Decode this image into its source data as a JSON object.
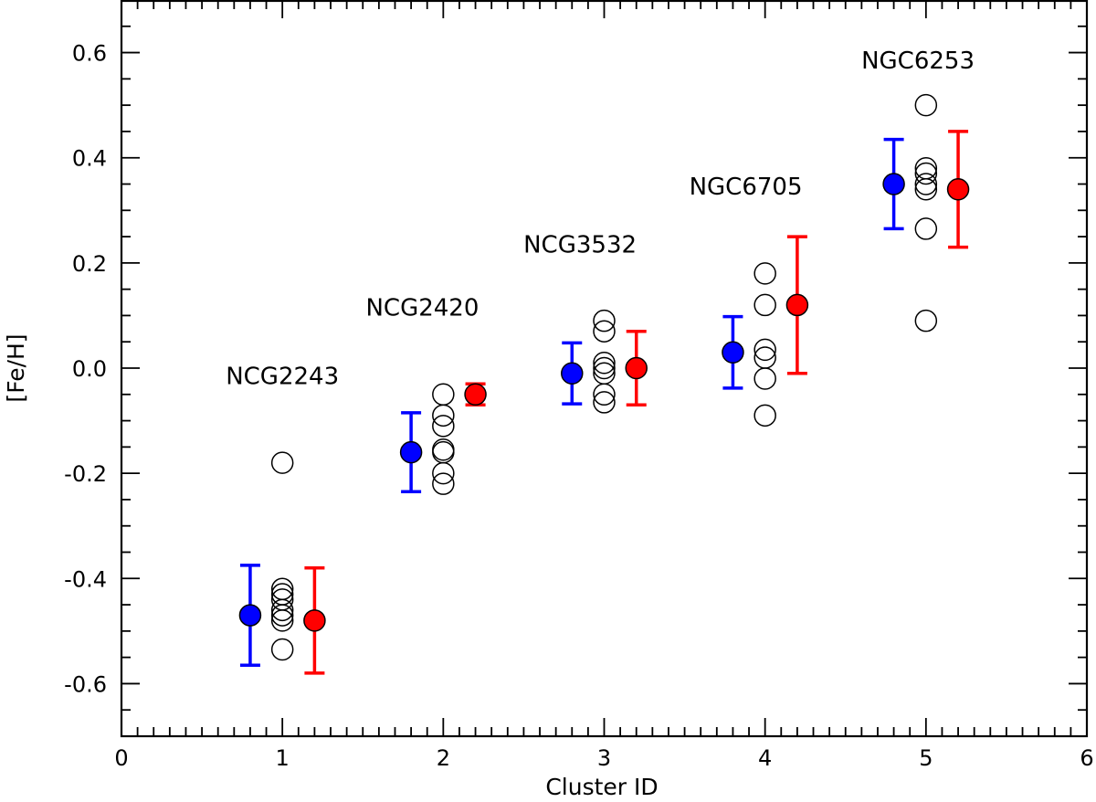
{
  "chart_data": {
    "type": "scatter",
    "title": "",
    "xlabel": "Cluster ID",
    "ylabel": "[Fe/H]",
    "xlim": [
      0,
      6
    ],
    "ylim": [
      -0.7,
      0.7
    ],
    "x_ticks": [
      0,
      1,
      2,
      3,
      4,
      5,
      6
    ],
    "x_tick_labels": [
      "0",
      "1",
      "2",
      "3",
      "4",
      "5",
      "6"
    ],
    "y_ticks": [
      -0.6,
      -0.4,
      -0.2,
      0.0,
      0.2,
      0.4,
      0.6
    ],
    "y_tick_labels": [
      "-0.6",
      "-0.4",
      "-0.2",
      "0.0",
      "0.2",
      "0.4",
      "0.6"
    ],
    "grid": false,
    "colors": {
      "blue": "#0000ff",
      "red": "#ff0000",
      "open": "#000000"
    },
    "series": [
      {
        "style": "blue-filled-with-errorbars",
        "points": [
          {
            "x": 0.8,
            "y": -0.47,
            "err_low": 0.095,
            "err_high": 0.095
          },
          {
            "x": 1.8,
            "y": -0.16,
            "err_low": 0.075,
            "err_high": 0.075
          },
          {
            "x": 2.8,
            "y": -0.01,
            "err_low": 0.058,
            "err_high": 0.058
          },
          {
            "x": 3.8,
            "y": 0.03,
            "err_low": 0.068,
            "err_high": 0.068
          },
          {
            "x": 4.8,
            "y": 0.35,
            "err_low": 0.085,
            "err_high": 0.085
          }
        ]
      },
      {
        "style": "open-circles",
        "points": [
          {
            "x": 1,
            "y": -0.18
          },
          {
            "x": 1,
            "y": -0.42
          },
          {
            "x": 1,
            "y": -0.43
          },
          {
            "x": 1,
            "y": -0.44
          },
          {
            "x": 1,
            "y": -0.46
          },
          {
            "x": 1,
            "y": -0.47
          },
          {
            "x": 1,
            "y": -0.48
          },
          {
            "x": 1,
            "y": -0.535
          },
          {
            "x": 2,
            "y": -0.05
          },
          {
            "x": 2,
            "y": -0.09
          },
          {
            "x": 2,
            "y": -0.11
          },
          {
            "x": 2,
            "y": -0.155
          },
          {
            "x": 2,
            "y": -0.16
          },
          {
            "x": 2,
            "y": -0.2
          },
          {
            "x": 2,
            "y": -0.22
          },
          {
            "x": 3,
            "y": 0.09
          },
          {
            "x": 3,
            "y": 0.07
          },
          {
            "x": 3,
            "y": 0.01
          },
          {
            "x": 3,
            "y": 0.0
          },
          {
            "x": 3,
            "y": -0.01
          },
          {
            "x": 3,
            "y": -0.05
          },
          {
            "x": 3,
            "y": -0.065
          },
          {
            "x": 4,
            "y": 0.18
          },
          {
            "x": 4,
            "y": 0.12
          },
          {
            "x": 4,
            "y": 0.035
          },
          {
            "x": 4,
            "y": 0.02
          },
          {
            "x": 4,
            "y": -0.02
          },
          {
            "x": 4,
            "y": -0.09
          },
          {
            "x": 5,
            "y": 0.5
          },
          {
            "x": 5,
            "y": 0.38
          },
          {
            "x": 5,
            "y": 0.37
          },
          {
            "x": 5,
            "y": 0.35
          },
          {
            "x": 5,
            "y": 0.34
          },
          {
            "x": 5,
            "y": 0.265
          },
          {
            "x": 5,
            "y": 0.09
          }
        ]
      },
      {
        "style": "red-filled-with-errorbars",
        "points": [
          {
            "x": 1.2,
            "y": -0.48,
            "err_low": 0.1,
            "err_high": 0.1
          },
          {
            "x": 2.2,
            "y": -0.05,
            "err_low": 0.02,
            "err_high": 0.02
          },
          {
            "x": 3.2,
            "y": 0.0,
            "err_low": 0.07,
            "err_high": 0.07
          },
          {
            "x": 4.2,
            "y": 0.12,
            "err_low": 0.13,
            "err_high": 0.13
          },
          {
            "x": 5.2,
            "y": 0.34,
            "err_low": 0.11,
            "err_high": 0.11
          }
        ]
      }
    ],
    "annotations": [
      {
        "text": "NCG2243",
        "x": 1.0,
        "y": -0.03
      },
      {
        "text": "NCG2420",
        "x": 1.87,
        "y": 0.1
      },
      {
        "text": "NCG3532",
        "x": 2.85,
        "y": 0.22
      },
      {
        "text": "NGC6705",
        "x": 3.88,
        "y": 0.33
      },
      {
        "text": "NGC6253",
        "x": 4.95,
        "y": 0.57
      }
    ]
  }
}
